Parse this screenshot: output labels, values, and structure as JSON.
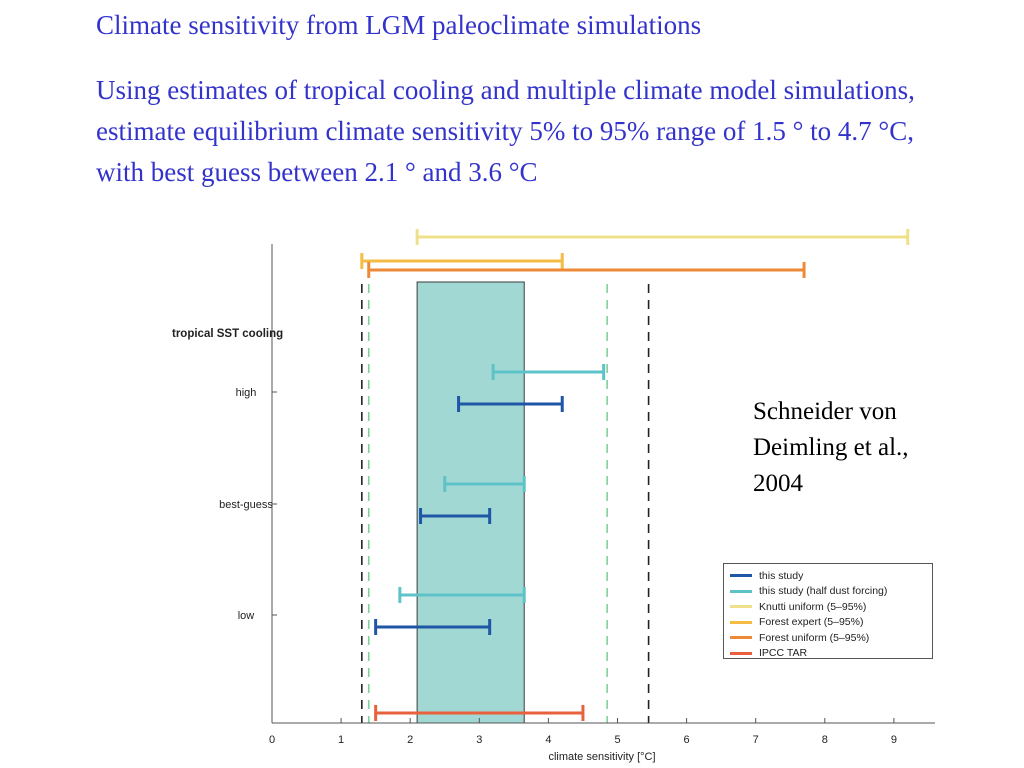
{
  "slide": {
    "title": "Climate sensitivity from LGM paleoclimate simulations",
    "body": "Using estimates of tropical cooling and multiple climate model simulations, estimate equilibrium climate sensitivity 5% to 95% range of 1.5 ° to 4.7 °C, with best guess between 2.1 ° and 3.6 °C",
    "citation": "Schneider von Deimling et al., 2004"
  },
  "colors": {
    "this_study": "#1f56a6",
    "this_study_half_dust": "#5ec3c8",
    "knutti_uniform": "#efe08a",
    "forest_expert": "#f5bc45",
    "forest_uniform": "#ee8a37",
    "ipcc_tar": "#e8603c",
    "shaded_range": "#a1d8d4",
    "green_dashed": "#7fcf9a",
    "black_dashed": "#222222",
    "title_text": "#3333cc"
  },
  "chart_data": {
    "type": "range",
    "xlabel": "climate sensitivity [°C]",
    "xlim": [
      0,
      9.5
    ],
    "x_ticks": [
      "0",
      "1",
      "2",
      "3",
      "4",
      "5",
      "6",
      "7",
      "8",
      "9"
    ],
    "y_group_label": "tropical SST cooling",
    "categories": [
      "high",
      "best-guess",
      "low"
    ],
    "shaded_range": [
      2.1,
      3.65
    ],
    "vertical_lines": {
      "black_dashed": [
        1.3,
        5.45
      ],
      "green_dashed": [
        1.4,
        4.85
      ]
    },
    "series": [
      {
        "name": "this study",
        "color_key": "this_study",
        "ranges": [
          {
            "category": "high",
            "low": 2.7,
            "high": 4.2
          },
          {
            "category": "best-guess",
            "low": 2.15,
            "high": 3.15
          },
          {
            "category": "low",
            "low": 1.5,
            "high": 3.15
          }
        ]
      },
      {
        "name": "this study (half dust forcing)",
        "color_key": "this_study_half_dust",
        "ranges": [
          {
            "category": "high",
            "low": 3.2,
            "high": 4.8
          },
          {
            "category": "best-guess",
            "low": 2.5,
            "high": 3.65
          },
          {
            "category": "low",
            "low": 1.85,
            "high": 3.65
          }
        ]
      },
      {
        "name": "Knutti uniform (5–95%)",
        "color_key": "knutti_uniform",
        "ranges": [
          {
            "low": 2.1,
            "high": 9.2
          }
        ]
      },
      {
        "name": "Forest expert (5–95%)",
        "color_key": "forest_expert",
        "ranges": [
          {
            "low": 1.3,
            "high": 4.2
          }
        ]
      },
      {
        "name": "Forest uniform (5–95%)",
        "color_key": "forest_uniform",
        "ranges": [
          {
            "low": 1.4,
            "high": 7.7
          }
        ]
      },
      {
        "name": "IPCC TAR",
        "color_key": "ipcc_tar",
        "ranges": [
          {
            "low": 1.5,
            "high": 4.5
          }
        ]
      }
    ]
  }
}
